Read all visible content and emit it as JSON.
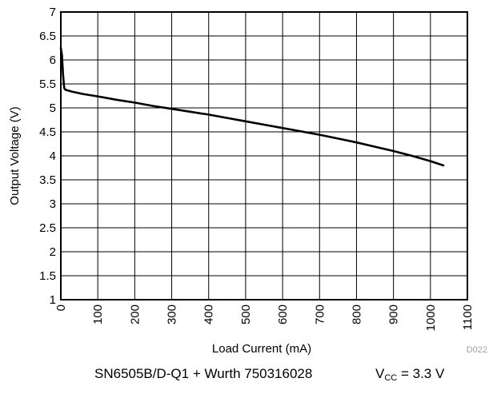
{
  "chart_data": {
    "type": "line",
    "title": "",
    "xlabel": "Load Current (mA)",
    "ylabel": "Output Voltage (V)",
    "xlim": [
      0,
      1100
    ],
    "ylim": [
      1,
      7
    ],
    "x_ticks": [
      0,
      100,
      200,
      300,
      400,
      500,
      600,
      700,
      800,
      900,
      1000,
      1100
    ],
    "y_ticks": [
      1,
      1.5,
      2,
      2.5,
      3,
      3.5,
      4,
      4.5,
      5,
      5.5,
      6,
      6.5,
      7
    ],
    "grid": true,
    "legend": "none",
    "figure_id": "D022",
    "series": [
      {
        "color": "#000000",
        "x": [
          0,
          3,
          6,
          9,
          12,
          30,
          60,
          100,
          150,
          200,
          250,
          300,
          350,
          400,
          450,
          500,
          550,
          600,
          650,
          700,
          750,
          800,
          850,
          900,
          950,
          1000,
          1035
        ],
        "y": [
          6.25,
          6.1,
          5.7,
          5.42,
          5.38,
          5.34,
          5.29,
          5.24,
          5.17,
          5.11,
          5.04,
          4.98,
          4.92,
          4.86,
          4.79,
          4.72,
          4.65,
          4.58,
          4.51,
          4.44,
          4.36,
          4.28,
          4.19,
          4.1,
          4.0,
          3.89,
          3.8
        ]
      }
    ]
  },
  "caption": {
    "device": "SN6505B/D-Q1 + Wurth 750316028",
    "vcc_label": "V",
    "vcc_sub": "CC",
    "vcc_value": " = 3.3 V"
  }
}
